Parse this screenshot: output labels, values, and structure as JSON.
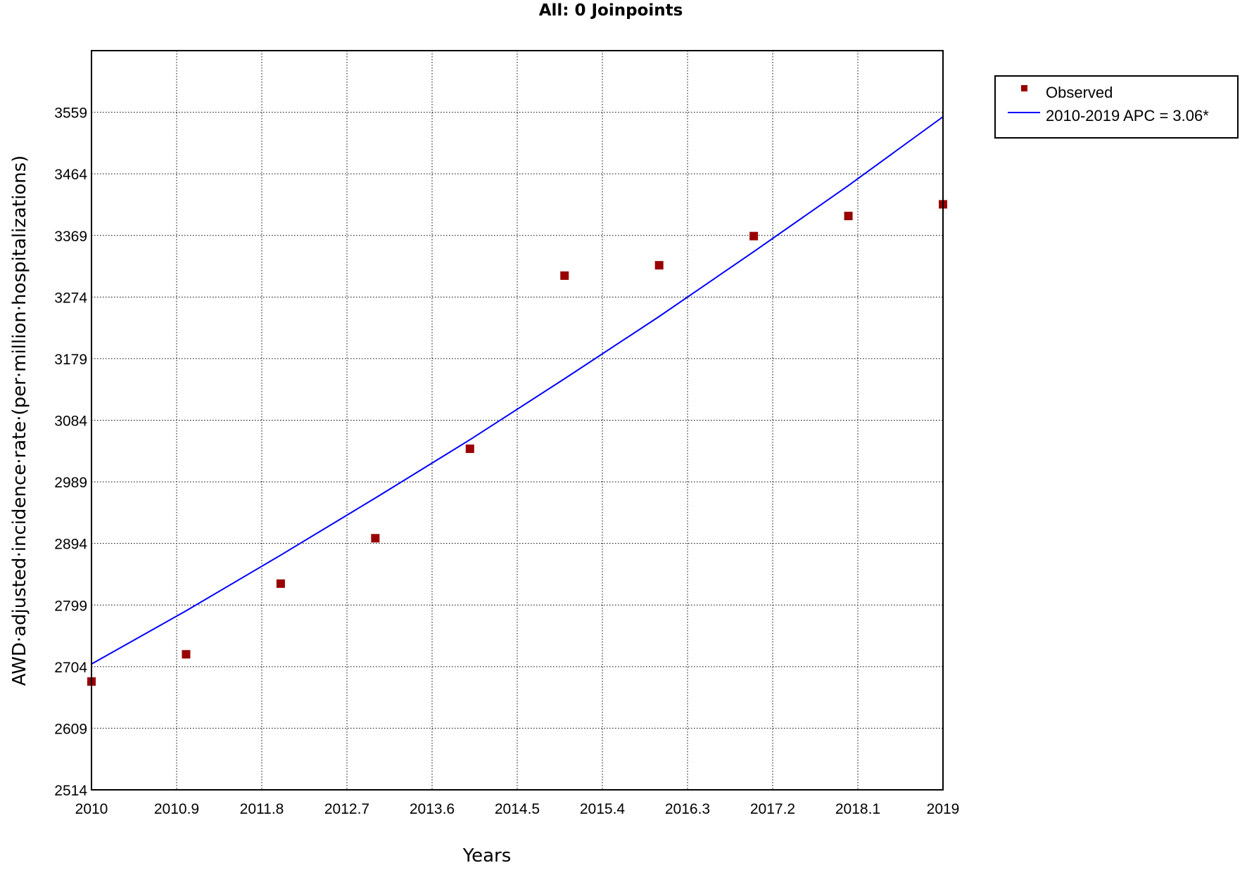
{
  "chart_data": {
    "type": "scatter",
    "title": "All: 0 Joinpoints",
    "xlabel": "Years",
    "ylabel": "AWD·adjusted·incidence·rate·(per·million·hospitalizations)",
    "xlim": [
      2010,
      2019
    ],
    "ylim": [
      2514,
      3654
    ],
    "x_ticks": [
      2010,
      2010.9,
      2011.8,
      2012.7,
      2013.6,
      2014.5,
      2015.4,
      2016.3,
      2017.2,
      2018.1,
      2019
    ],
    "x_tick_labels": [
      "2010",
      "2010.9",
      "2011.8",
      "2012.7",
      "2013.6",
      "2014.5",
      "2015.4",
      "2016.3",
      "2017.2",
      "2018.1",
      "2019"
    ],
    "y_ticks": [
      2514,
      2609,
      2704,
      2799,
      2894,
      2989,
      3084,
      3179,
      3274,
      3369,
      3464,
      3559
    ],
    "y_tick_labels": [
      "2514",
      "2609",
      "2704",
      "2799",
      "2894",
      "2989",
      "3084",
      "3179",
      "3274",
      "3369",
      "3464",
      "3559"
    ],
    "grid": true,
    "legend_position": "right",
    "series": [
      {
        "name": "Observed",
        "type": "scatter",
        "color": "#990000",
        "x": [
          2010,
          2011,
          2012,
          2013,
          2014,
          2015,
          2016,
          2017,
          2018,
          2019
        ],
        "values": [
          2681,
          2723,
          2832,
          2902,
          3040,
          3307,
          3323,
          3368,
          3399,
          3417
        ]
      },
      {
        "name": "2010-2019 APC  = 3.06*",
        "type": "line",
        "color": "#0000ff",
        "x": [
          2010,
          2011,
          2012,
          2013,
          2014,
          2015,
          2016,
          2017,
          2018,
          2019
        ],
        "values": [
          2708,
          2790,
          2876,
          2964,
          3054,
          3148,
          3244,
          3344,
          3446,
          3552
        ]
      }
    ]
  },
  "legend": {
    "observed_label": "Observed",
    "fit_label": "2010-2019 APC  = 3.06*"
  }
}
